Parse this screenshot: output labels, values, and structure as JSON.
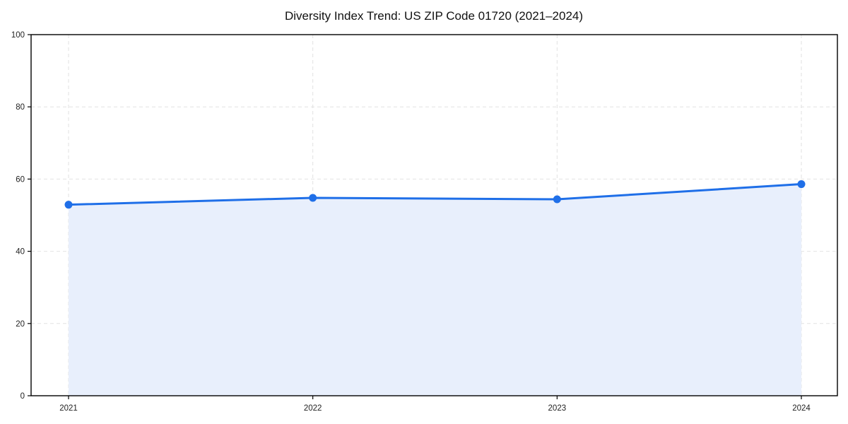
{
  "chart_data": {
    "type": "area",
    "title": "Diversity Index Trend: US ZIP Code 01720 (2021–2024)",
    "x": [
      "2021",
      "2022",
      "2023",
      "2024"
    ],
    "values": [
      52.9,
      54.8,
      54.4,
      58.6
    ],
    "xlabel": "",
    "ylabel": "",
    "ylim": [
      0,
      100
    ],
    "yticks": [
      0,
      20,
      40,
      60,
      80,
      100
    ],
    "grid": "dashed",
    "legend": "none",
    "colors": {
      "line": "#1f6fe8",
      "marker": "#1f6fe8",
      "fill": "#e8effc",
      "grid": "#e2e2e2",
      "spine": "#000000",
      "tick_label": "#222222",
      "title": "#111111",
      "background": "#ffffff"
    }
  }
}
